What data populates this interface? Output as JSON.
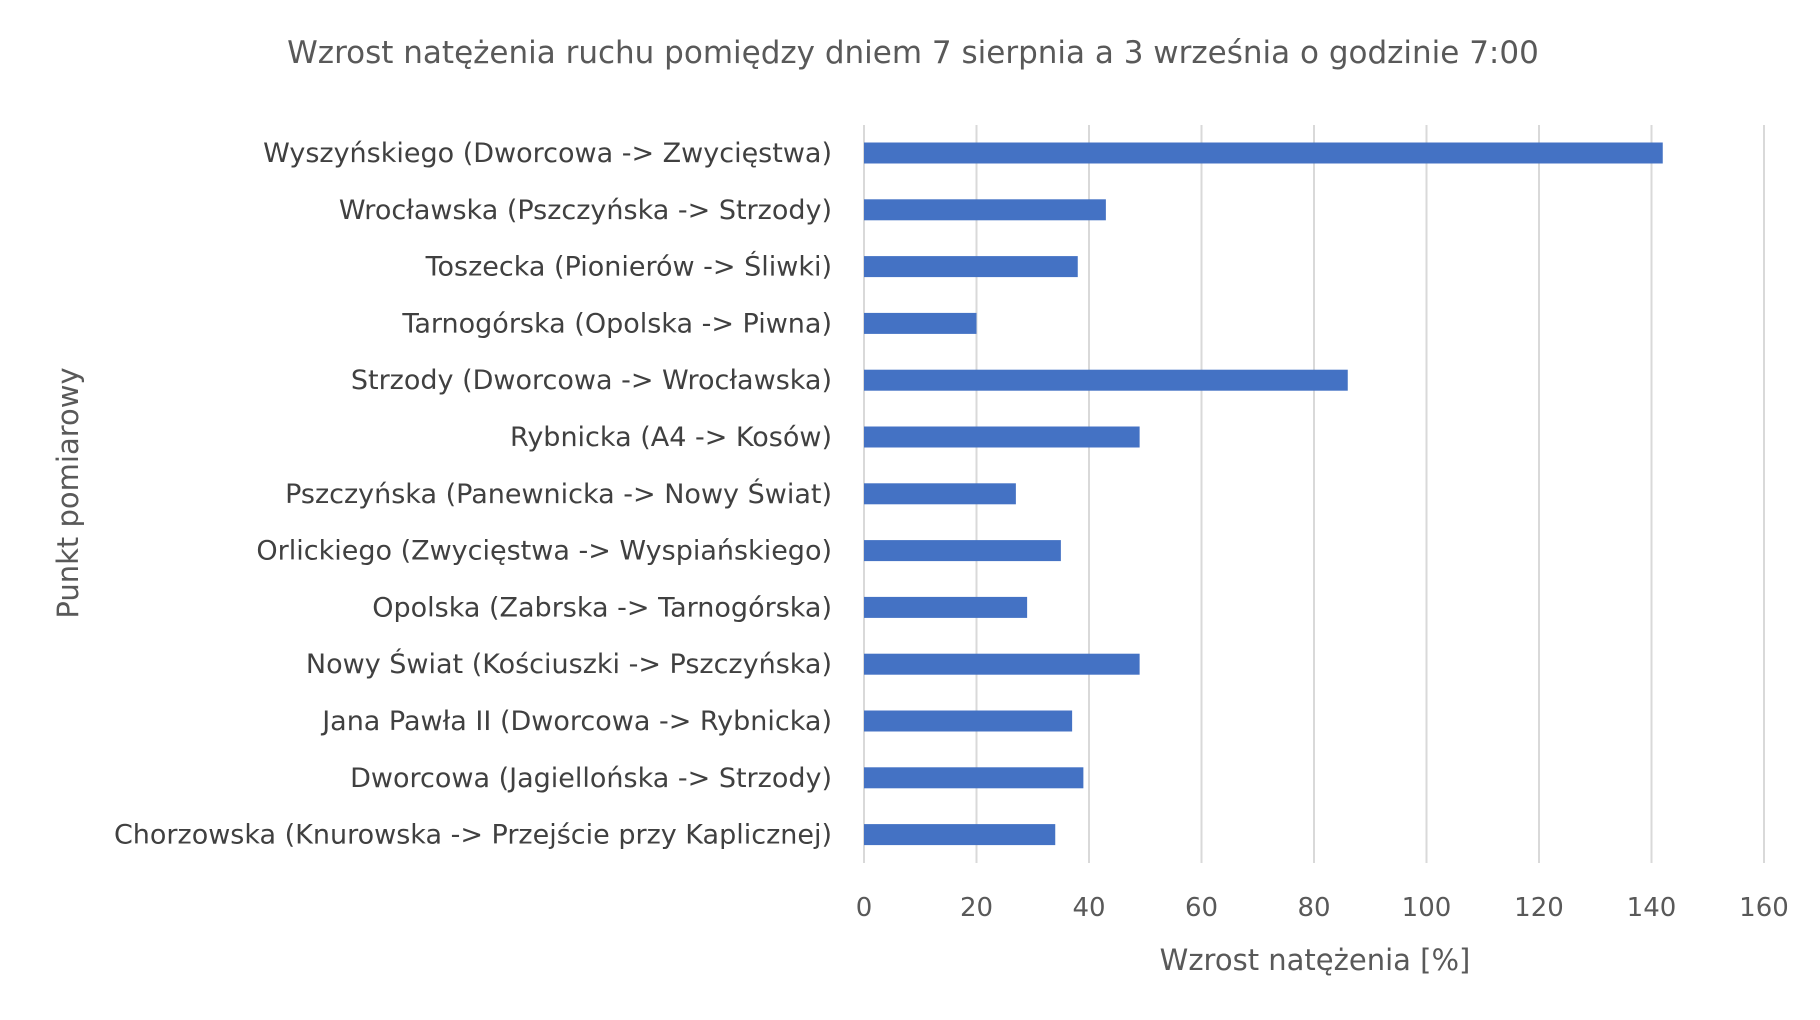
{
  "chart_data": {
    "type": "bar",
    "orientation": "horizontal",
    "title": "Wzrost natężenia ruchu pomiędzy dniem 7 sierpnia a 3 września o godzinie 7:00",
    "xlabel": "Wzrost natężenia [%]",
    "ylabel": "Punkt pomiarowy",
    "xlim": [
      0,
      160
    ],
    "xticks": [
      0,
      20,
      40,
      60,
      80,
      100,
      120,
      140,
      160
    ],
    "grid": "vertical",
    "legend": "none",
    "bar_color": "#4472c4",
    "categories": [
      "Wyszyńskiego (Dworcowa -> Zwycięstwa)",
      "Wrocławska (Pszczyńska -> Strzody)",
      "Toszecka (Pionierów -> Śliwki)",
      "Tarnogórska (Opolska -> Piwna)",
      "Strzody (Dworcowa -> Wrocławska)",
      "Rybnicka (A4 -> Kosów)",
      "Pszczyńska (Panewnicka -> Nowy Świat)",
      "Orlickiego (Zwycięstwa -> Wyspiańskiego)",
      "Opolska (Zabrska -> Tarnogórska)",
      "Nowy Świat (Kościuszki -> Pszczyńska)",
      "Jana Pawła II (Dworcowa -> Rybnicka)",
      "Dworcowa (Jagiellońska -> Strzody)",
      "Chorzowska (Knurowska -> Przejście przy Kaplicznej)"
    ],
    "values": [
      142,
      43,
      38,
      20,
      86,
      49,
      27,
      35,
      29,
      49,
      37,
      39,
      34
    ]
  }
}
